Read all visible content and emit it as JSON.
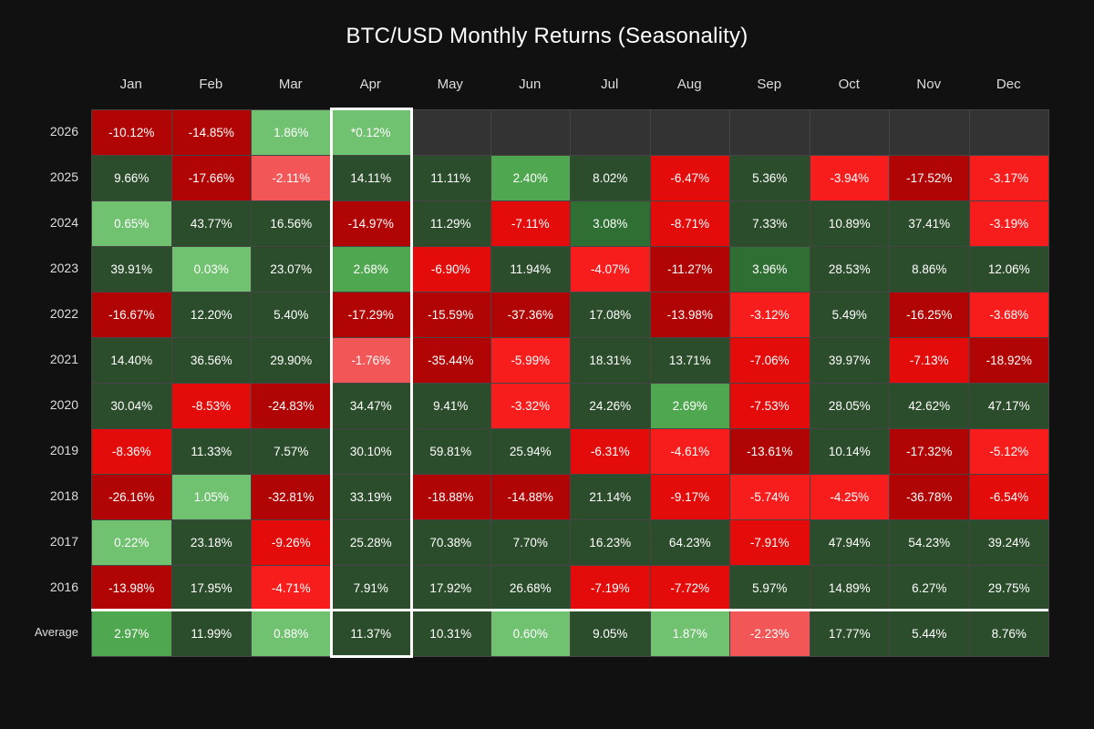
{
  "chart_data": {
    "type": "heatmap",
    "title": "BTC/USD Monthly Returns (Seasonality)",
    "columns": [
      "Jan",
      "Feb",
      "Mar",
      "Apr",
      "May",
      "Jun",
      "Jul",
      "Aug",
      "Sep",
      "Oct",
      "Nov",
      "Dec"
    ],
    "highlighted_column": "Apr",
    "rows": [
      {
        "label": "2026",
        "values": [
          "-10.12%",
          "-14.85%",
          "1.86%",
          "*0.12%",
          null,
          null,
          null,
          null,
          null,
          null,
          null,
          null
        ]
      },
      {
        "label": "2025",
        "values": [
          "9.66%",
          "-17.66%",
          "-2.11%",
          "14.11%",
          "11.11%",
          "2.40%",
          "8.02%",
          "-6.47%",
          "5.36%",
          "-3.94%",
          "-17.52%",
          "-3.17%"
        ]
      },
      {
        "label": "2024",
        "values": [
          "0.65%",
          "43.77%",
          "16.56%",
          "-14.97%",
          "11.29%",
          "-7.11%",
          "3.08%",
          "-8.71%",
          "7.33%",
          "10.89%",
          "37.41%",
          "-3.19%"
        ]
      },
      {
        "label": "2023",
        "values": [
          "39.91%",
          "0.03%",
          "23.07%",
          "2.68%",
          "-6.90%",
          "11.94%",
          "-4.07%",
          "-11.27%",
          "3.96%",
          "28.53%",
          "8.86%",
          "12.06%"
        ]
      },
      {
        "label": "2022",
        "values": [
          "-16.67%",
          "12.20%",
          "5.40%",
          "-17.29%",
          "-15.59%",
          "-37.36%",
          "17.08%",
          "-13.98%",
          "-3.12%",
          "5.49%",
          "-16.25%",
          "-3.68%"
        ]
      },
      {
        "label": "2021",
        "values": [
          "14.40%",
          "36.56%",
          "29.90%",
          "-1.76%",
          "-35.44%",
          "-5.99%",
          "18.31%",
          "13.71%",
          "-7.06%",
          "39.97%",
          "-7.13%",
          "-18.92%"
        ]
      },
      {
        "label": "2020",
        "values": [
          "30.04%",
          "-8.53%",
          "-24.83%",
          "34.47%",
          "9.41%",
          "-3.32%",
          "24.26%",
          "2.69%",
          "-7.53%",
          "28.05%",
          "42.62%",
          "47.17%"
        ]
      },
      {
        "label": "2019",
        "values": [
          "-8.36%",
          "11.33%",
          "7.57%",
          "30.10%",
          "59.81%",
          "25.94%",
          "-6.31%",
          "-4.61%",
          "-13.61%",
          "10.14%",
          "-17.32%",
          "-5.12%"
        ]
      },
      {
        "label": "2018",
        "values": [
          "-26.16%",
          "1.05%",
          "-32.81%",
          "33.19%",
          "-18.88%",
          "-14.88%",
          "21.14%",
          "-9.17%",
          "-5.74%",
          "-4.25%",
          "-36.78%",
          "-6.54%"
        ]
      },
      {
        "label": "2017",
        "values": [
          "0.22%",
          "23.18%",
          "-9.26%",
          "25.28%",
          "70.38%",
          "7.70%",
          "16.23%",
          "64.23%",
          "-7.91%",
          "47.94%",
          "54.23%",
          "39.24%"
        ]
      },
      {
        "label": "2016",
        "values": [
          "-13.98%",
          "17.95%",
          "-4.71%",
          "7.91%",
          "17.92%",
          "26.68%",
          "-7.19%",
          "-7.72%",
          "5.97%",
          "14.89%",
          "6.27%",
          "29.75%"
        ]
      },
      {
        "label": "Average",
        "values": [
          "2.97%",
          "11.99%",
          "0.88%",
          "11.37%",
          "10.31%",
          "0.60%",
          "9.05%",
          "1.87%",
          "-2.23%",
          "17.77%",
          "5.44%",
          "8.76%"
        ]
      }
    ],
    "colors": {
      "pos_light": "#70c170",
      "pos_mid": "#4fa84f",
      "pos_mid2": "#2f6f33",
      "pos_dark": "#2c4d2c",
      "neg_light": "#f25656",
      "neg_bright": "#f81d1d",
      "neg_mid": "#e40b0b",
      "neg_dark": "#b10505",
      "empty": "#333333",
      "background": "#111111"
    }
  }
}
